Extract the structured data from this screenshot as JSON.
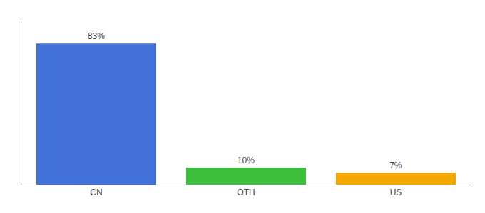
{
  "chart_data": {
    "type": "bar",
    "categories": [
      "CN",
      "OTH",
      "US"
    ],
    "values": [
      83,
      10,
      7
    ],
    "value_labels": [
      "83%",
      "10%",
      "7%"
    ],
    "colors": [
      "#4472db",
      "#3dbf3d",
      "#f5a800"
    ],
    "ylim": [
      0,
      96
    ],
    "data_labels": true,
    "tick_labels": "x",
    "grid": false
  }
}
